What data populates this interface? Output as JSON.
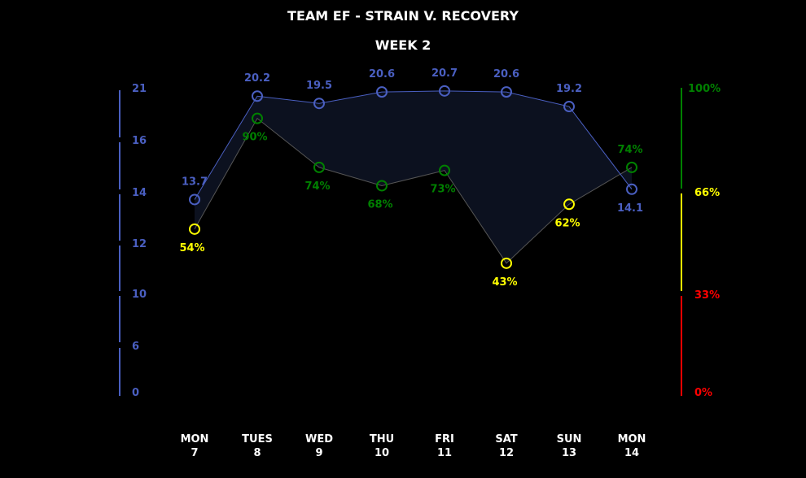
{
  "chart_data": {
    "type": "line",
    "title": "TEAM EF - STRAIN V. RECOVERY",
    "subtitle": "WEEK 2",
    "categories": [
      {
        "day": "MON",
        "date": "7"
      },
      {
        "day": "TUES",
        "date": "8"
      },
      {
        "day": "WED",
        "date": "9"
      },
      {
        "day": "THU",
        "date": "10"
      },
      {
        "day": "FRI",
        "date": "11"
      },
      {
        "day": "SAT",
        "date": "12"
      },
      {
        "day": "SUN",
        "date": "13"
      },
      {
        "day": "MON",
        "date": "14"
      }
    ],
    "series": [
      {
        "axis": "left",
        "values": [
          13.7,
          20.2,
          19.5,
          20.6,
          20.7,
          20.6,
          19.2,
          14.1
        ],
        "labels": [
          "13.7",
          "20.2",
          "19.5",
          "20.6",
          "20.7",
          "20.6",
          "19.2",
          "14.1"
        ],
        "color": "#4a5fc1"
      },
      {
        "axis": "right",
        "values": [
          54,
          90,
          74,
          68,
          73,
          43,
          62,
          74
        ],
        "labels": [
          "54%",
          "90%",
          "74%",
          "68%",
          "73%",
          "43%",
          "62%",
          "74%"
        ],
        "unit": "%"
      }
    ],
    "left_axis": {
      "ticks": [
        "21",
        "16",
        "14",
        "12",
        "10",
        "6",
        "0"
      ],
      "color": "#4a5fc1"
    },
    "right_axis": {
      "ticks": [
        {
          "label": "100%",
          "color": "#008000"
        },
        {
          "label": "66%",
          "color": "#ffff00"
        },
        {
          "label": "33%",
          "color": "#ff0000"
        },
        {
          "label": "0%",
          "color": "#ff0000"
        }
      ],
      "zones": [
        {
          "from": 0,
          "to": 33,
          "color": "#ff0000"
        },
        {
          "from": 33,
          "to": 66,
          "color": "#ffff00"
        },
        {
          "from": 66,
          "to": 100,
          "color": "#008000"
        }
      ]
    },
    "recovery_colors": {
      "high": "#008000",
      "mid": "#ffff00",
      "low": "#ff0000"
    },
    "grid": false,
    "legend": "none",
    "background": "#000000"
  }
}
